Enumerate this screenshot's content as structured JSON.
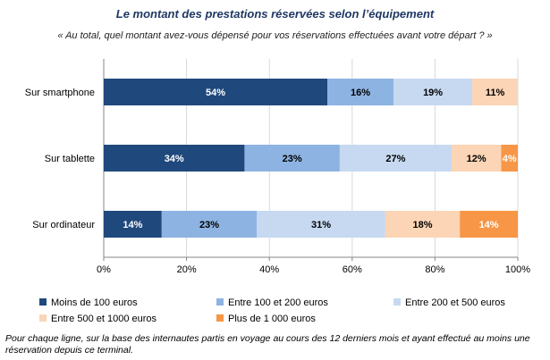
{
  "chart_data": {
    "type": "bar",
    "orientation": "horizontal",
    "stacked": true,
    "title": "Le montant des prestations réservées selon l’équipement",
    "subtitle": "« Au total, quel montant avez-vous dépensé pour vos réservations effectuées avant votre départ ? »",
    "categories": [
      "Sur smartphone",
      "Sur tablette",
      "Sur ordinateur"
    ],
    "series": [
      {
        "name": "Moins de 100 euros",
        "values": [
          54,
          34,
          14
        ],
        "labels": [
          "54%",
          "34%",
          "14%"
        ],
        "color": "#1f497d",
        "text_color": "#ffffff"
      },
      {
        "name": "Entre 100 et 200 euros",
        "values": [
          16,
          23,
          23
        ],
        "labels": [
          "16%",
          "23%",
          "23%"
        ],
        "color": "#8db3e2",
        "text_color": "#000000"
      },
      {
        "name": "Entre 200 et 500 euros",
        "values": [
          19,
          27,
          31
        ],
        "labels": [
          "19%",
          "27%",
          "31%"
        ],
        "color": "#c6d9f1",
        "text_color": "#000000"
      },
      {
        "name": "Entre 500 et  1000 euros",
        "values": [
          11,
          12,
          18
        ],
        "labels": [
          "11%",
          "12%",
          "18%"
        ],
        "color": "#fbd5b5",
        "text_color": "#000000"
      },
      {
        "name": "Plus de 1 000 euros",
        "values": [
          0,
          4,
          14
        ],
        "labels": [
          "",
          "4%",
          "14%"
        ],
        "color": "#f79646",
        "text_color": "#ffffff"
      }
    ],
    "x_ticks": [
      "0%",
      "20%",
      "40%",
      "60%",
      "80%",
      "100%"
    ],
    "xlim": [
      0,
      100
    ],
    "grid": true,
    "legend_position": "bottom"
  },
  "footnote": "Pour chaque ligne, sur la base des internautes partis en voyage au cours des 12 derniers mois et ayant effectué au moins une réservation depuis ce terminal."
}
